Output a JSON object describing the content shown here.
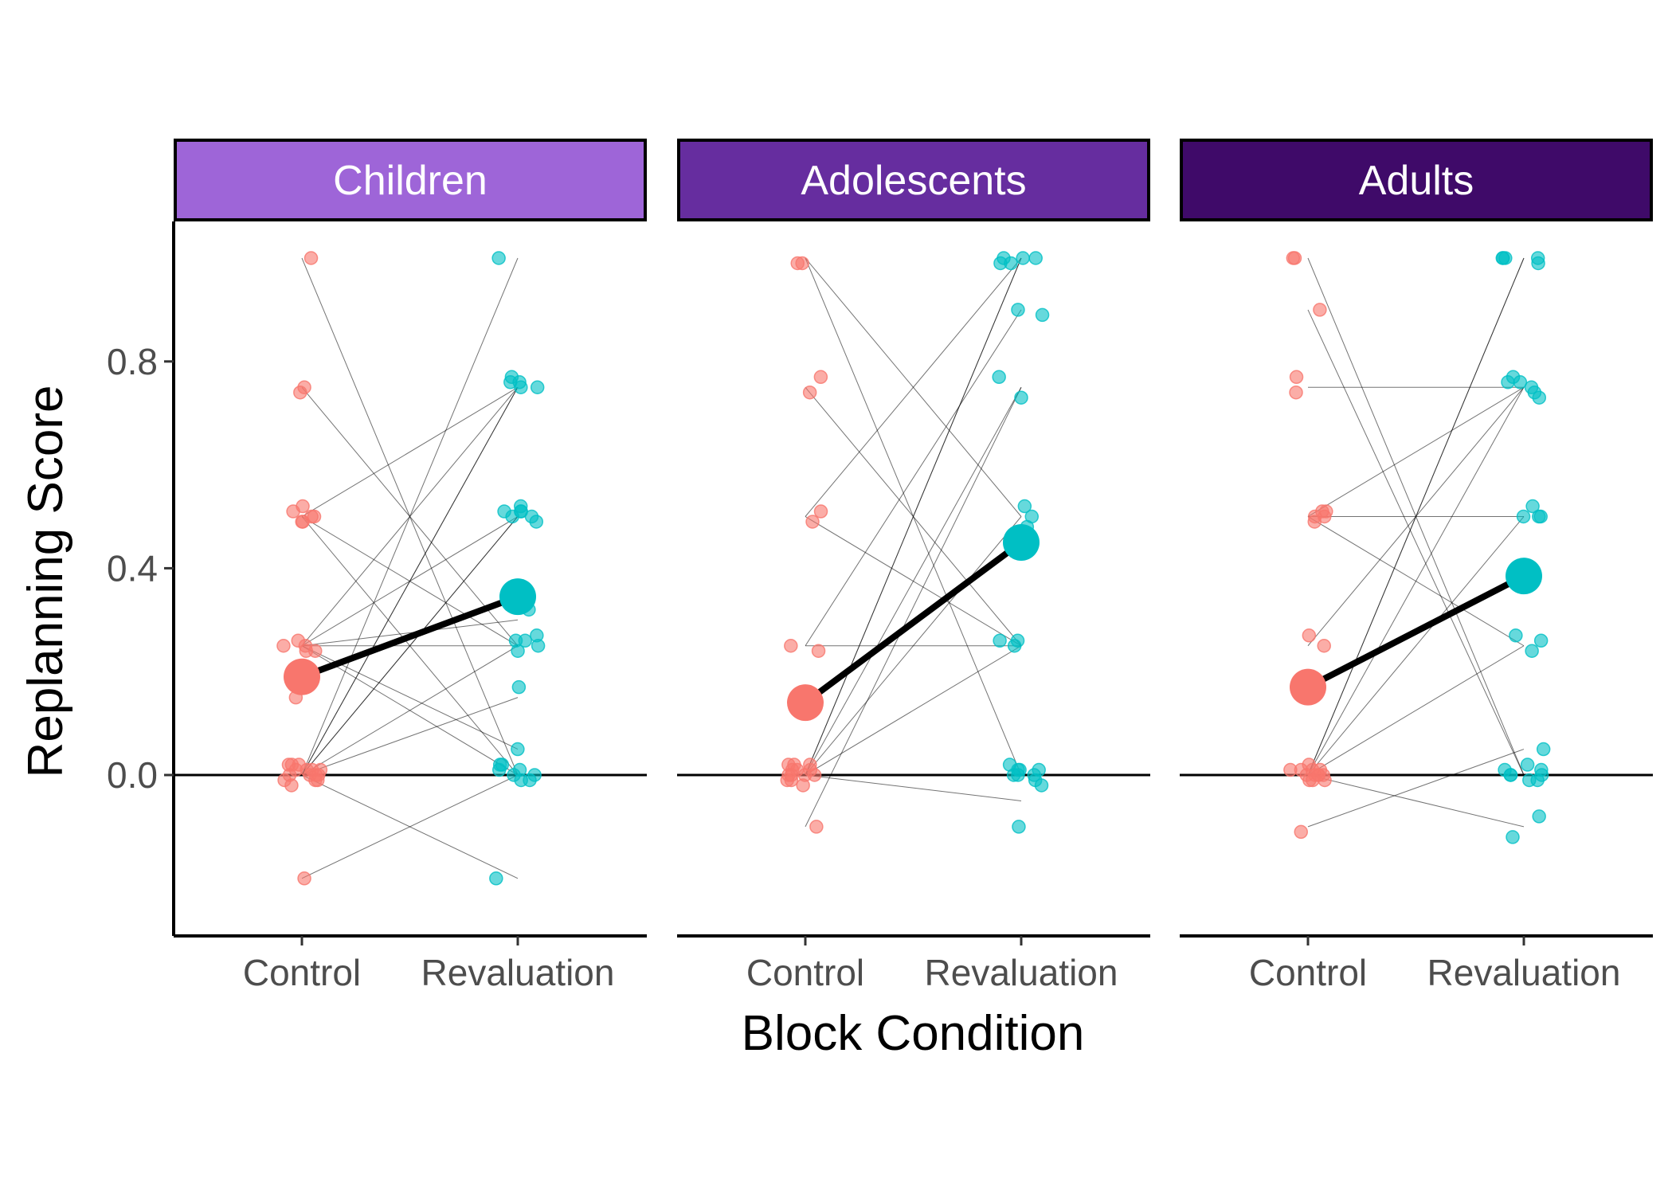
{
  "chart_data": {
    "type": "scatter",
    "xlabel": "Block Condition",
    "ylabel": "Replanning Score",
    "categories": [
      "Control",
      "Revaluation"
    ],
    "yticks": [
      "0.0",
      "0.4",
      "0.8"
    ],
    "ytick_values": [
      0.0,
      0.4,
      0.8
    ],
    "ylim": [
      -0.31,
      1.07
    ],
    "reference_line_y": 0.0,
    "grid": false,
    "legend": "none",
    "colors": {
      "Control": "#F8766D",
      "Revaluation": "#00BFC4",
      "mean_line": "#000000",
      "paired_lines": "#000000"
    },
    "panels": [
      {
        "name": "Children",
        "strip_color": "#9E65D8",
        "mean_control": 0.19,
        "mean_revaluation": 0.345,
        "control_points": [
          1.0,
          0.75,
          0.74,
          0.51,
          0.5,
          0.5,
          0.49,
          0.49,
          0.52,
          0.25,
          0.25,
          0.24,
          0.26,
          0.24,
          0.15,
          0.02,
          0.02,
          0.01,
          0.0,
          0.0,
          -0.01,
          -0.01,
          0.01,
          0.0,
          -0.02,
          0.01,
          0.02,
          -0.01,
          0.0,
          0.01,
          -0.2
        ],
        "revaluation_points": [
          1.0,
          0.77,
          0.76,
          0.75,
          0.76,
          0.75,
          0.52,
          0.51,
          0.51,
          0.5,
          0.49,
          0.5,
          0.51,
          0.32,
          0.26,
          0.25,
          0.26,
          0.27,
          0.24,
          0.17,
          0.05,
          0.02,
          0.01,
          0.0,
          0.0,
          -0.01,
          0.02,
          0.01,
          -0.01,
          -0.2
        ],
        "paired_lines": [
          [
            1.0,
            0.0
          ],
          [
            0.75,
            0.25
          ],
          [
            0.5,
            0.75
          ],
          [
            0.5,
            0.25
          ],
          [
            0.5,
            0.0
          ],
          [
            0.25,
            0.75
          ],
          [
            0.25,
            0.5
          ],
          [
            0.25,
            0.3
          ],
          [
            0.25,
            0.25
          ],
          [
            0.25,
            0.05
          ],
          [
            0.25,
            0.0
          ],
          [
            0.0,
            1.0
          ],
          [
            0.0,
            0.75
          ],
          [
            0.0,
            0.75
          ],
          [
            0.0,
            0.5
          ],
          [
            0.0,
            0.5
          ],
          [
            0.0,
            0.25
          ],
          [
            0.0,
            0.15
          ],
          [
            0.0,
            -0.2
          ],
          [
            -0.2,
            0.0
          ]
        ]
      },
      {
        "name": "Adolescents",
        "strip_color": "#662D9F",
        "mean_control": 0.14,
        "mean_revaluation": 0.45,
        "control_points": [
          0.99,
          0.99,
          0.77,
          0.74,
          0.51,
          0.49,
          0.25,
          0.24,
          0.02,
          0.01,
          0.0,
          0.01,
          -0.01,
          0.0,
          0.02,
          0.0,
          -0.02,
          0.01,
          -0.01,
          0.0,
          0.02,
          -0.1
        ],
        "revaluation_points": [
          1.0,
          1.0,
          0.99,
          1.0,
          0.99,
          0.89,
          0.9,
          0.77,
          0.73,
          0.52,
          0.5,
          0.48,
          0.26,
          0.26,
          0.25,
          0.02,
          0.01,
          0.0,
          0.01,
          -0.01,
          0.0,
          -0.02,
          0.01,
          0.0,
          -0.1
        ],
        "paired_lines": [
          [
            1.0,
            0.0
          ],
          [
            1.0,
            0.5
          ],
          [
            0.75,
            0.25
          ],
          [
            0.5,
            0.25
          ],
          [
            0.5,
            1.0
          ],
          [
            0.25,
            0.25
          ],
          [
            0.25,
            0.9
          ],
          [
            0.0,
            1.0
          ],
          [
            0.0,
            1.0
          ],
          [
            0.0,
            0.75
          ],
          [
            0.0,
            0.5
          ],
          [
            0.0,
            0.25
          ],
          [
            0.0,
            0.0
          ],
          [
            0.0,
            -0.05
          ],
          [
            -0.1,
            0.75
          ]
        ]
      },
      {
        "name": "Adults",
        "strip_color": "#3F0A69",
        "mean_control": 0.17,
        "mean_revaluation": 0.385,
        "control_points": [
          1.0,
          1.0,
          0.9,
          0.77,
          0.74,
          0.5,
          0.5,
          0.49,
          0.51,
          0.51,
          0.27,
          0.25,
          0.02,
          0.01,
          0.0,
          -0.01,
          0.0,
          0.01,
          0.0,
          -0.01,
          0.01,
          0.0,
          -0.01,
          0.0,
          0.01,
          -0.11
        ],
        "revaluation_points": [
          1.0,
          1.0,
          1.0,
          0.99,
          1.0,
          0.77,
          0.76,
          0.75,
          0.76,
          0.74,
          0.73,
          0.52,
          0.5,
          0.5,
          0.5,
          0.27,
          0.26,
          0.24,
          0.05,
          0.02,
          0.01,
          0.0,
          0.0,
          -0.01,
          0.01,
          0.0,
          -0.01,
          -0.08,
          -0.12
        ],
        "paired_lines": [
          [
            1.0,
            0.0
          ],
          [
            0.9,
            0.0
          ],
          [
            0.75,
            0.75
          ],
          [
            0.5,
            0.75
          ],
          [
            0.5,
            0.5
          ],
          [
            0.5,
            0.25
          ],
          [
            0.25,
            0.75
          ],
          [
            0.0,
            1.0
          ],
          [
            0.0,
            1.0
          ],
          [
            0.0,
            0.75
          ],
          [
            0.0,
            0.5
          ],
          [
            0.0,
            0.25
          ],
          [
            0.0,
            -0.1
          ],
          [
            -0.1,
            0.05
          ]
        ]
      }
    ]
  }
}
